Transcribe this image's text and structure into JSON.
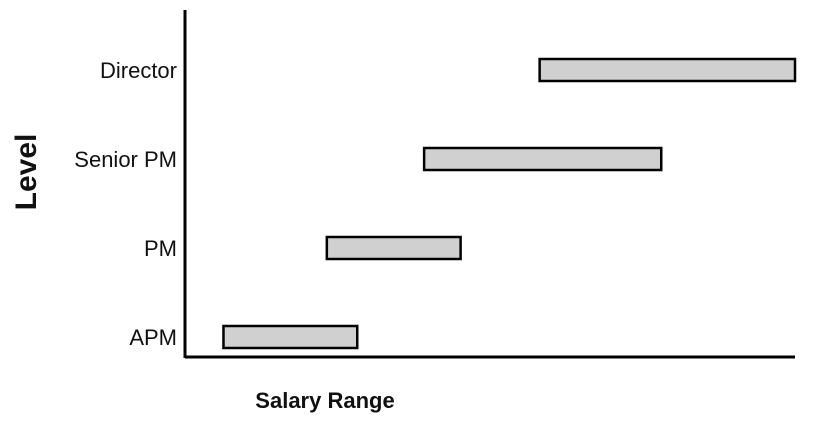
{
  "chart_data": {
    "type": "bar",
    "orientation": "horizontal-range",
    "title": "",
    "xlabel": "Salary Range",
    "ylabel": "Level",
    "categories": [
      "APM",
      "PM",
      "Senior PM",
      "Director"
    ],
    "ranges": [
      {
        "category": "APM",
        "start": 0.06,
        "end": 0.28
      },
      {
        "category": "PM",
        "start": 0.23,
        "end": 0.45
      },
      {
        "category": "Senior PM",
        "start": 0.39,
        "end": 0.78
      },
      {
        "category": "Director",
        "start": 0.58,
        "end": 1.0
      }
    ],
    "xlim": [
      0,
      1
    ],
    "x_ticks_visible": false,
    "grid": false,
    "legend": "none",
    "colors": {
      "bar_fill": "#d0d0d0",
      "bar_stroke": "#000000",
      "axis": "#000000",
      "text": "#111111"
    }
  }
}
